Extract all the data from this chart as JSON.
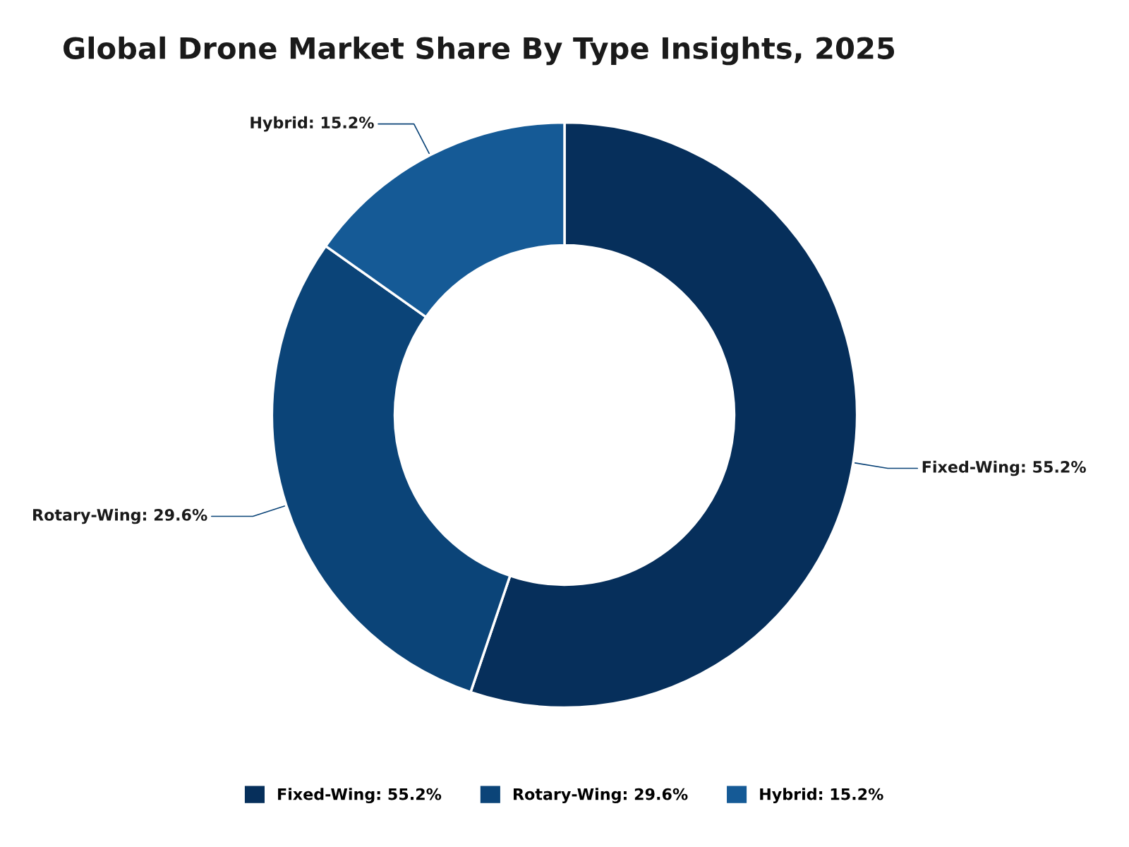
{
  "chart_data": {
    "type": "donut",
    "title": "Global Drone Market Share By Type Insights, 2025",
    "categories": [
      "Fixed-Wing: 55.2%",
      "Rotary-Wing: 29.6%",
      "Hybrid: 15.2%"
    ],
    "values": [
      55.2,
      29.6,
      15.2
    ],
    "colors": [
      "#062f5b",
      "#0b4478",
      "#155a96"
    ],
    "legend": "bottom"
  }
}
